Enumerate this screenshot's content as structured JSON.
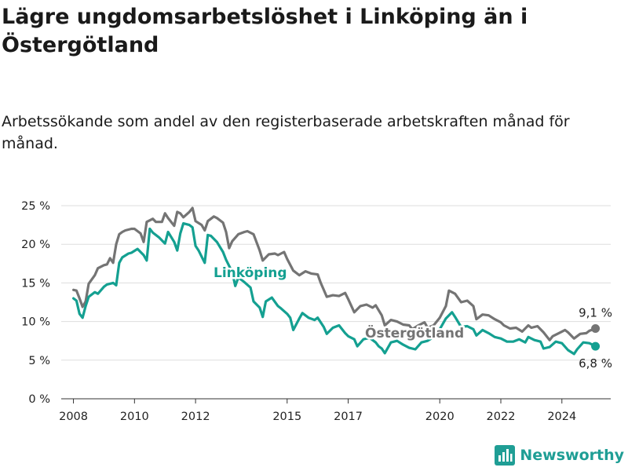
{
  "title": "Lägre ungdomsarbetslöshet i Linköping än i Östergötland",
  "subtitle": "Arbetssökande som andel av den registerbaserade arbetskraften månad för månad.",
  "brand": "Newsworthy",
  "colors": {
    "linkoping": "#14a091",
    "ostergotland": "#747474",
    "grid": "#dddddd",
    "brand": "#1f9e95"
  },
  "chart_data": {
    "type": "line",
    "x_unit": "year",
    "ylim": [
      0,
      25
    ],
    "xlim": [
      2007.6,
      2025.6
    ],
    "y_ticks": [
      {
        "value": 0,
        "label": "0 %"
      },
      {
        "value": 5,
        "label": "5 %"
      },
      {
        "value": 10,
        "label": "10 %"
      },
      {
        "value": 15,
        "label": "15 %"
      },
      {
        "value": 20,
        "label": "20 %"
      },
      {
        "value": 25,
        "label": "25 %"
      }
    ],
    "x_ticks": [
      {
        "value": 2008,
        "label": "2008"
      },
      {
        "value": 2010,
        "label": "2010"
      },
      {
        "value": 2012,
        "label": "2012"
      },
      {
        "value": 2015,
        "label": "2015"
      },
      {
        "value": 2017,
        "label": "2017"
      },
      {
        "value": 2020,
        "label": "2020"
      },
      {
        "value": 2022,
        "label": "2022"
      },
      {
        "value": 2024,
        "label": "2024"
      }
    ],
    "grid": true,
    "series": [
      {
        "name": "Östergötland",
        "end_label": "9,1 %",
        "points": [
          [
            2008.0,
            14.1
          ],
          [
            2008.1,
            14.0
          ],
          [
            2008.2,
            13.0
          ],
          [
            2008.3,
            11.9
          ],
          [
            2008.4,
            12.6
          ],
          [
            2008.5,
            14.9
          ],
          [
            2008.7,
            16.0
          ],
          [
            2008.8,
            16.9
          ],
          [
            2009.0,
            17.3
          ],
          [
            2009.1,
            17.4
          ],
          [
            2009.2,
            18.2
          ],
          [
            2009.3,
            17.6
          ],
          [
            2009.4,
            20.0
          ],
          [
            2009.5,
            21.3
          ],
          [
            2009.6,
            21.6
          ],
          [
            2009.7,
            21.8
          ],
          [
            2009.9,
            22.0
          ],
          [
            2010.0,
            22.0
          ],
          [
            2010.2,
            21.4
          ],
          [
            2010.3,
            20.3
          ],
          [
            2010.4,
            22.9
          ],
          [
            2010.6,
            23.3
          ],
          [
            2010.7,
            22.9
          ],
          [
            2010.9,
            22.9
          ],
          [
            2011.0,
            24.0
          ],
          [
            2011.1,
            23.4
          ],
          [
            2011.3,
            22.4
          ],
          [
            2011.4,
            24.2
          ],
          [
            2011.5,
            24.0
          ],
          [
            2011.6,
            23.5
          ],
          [
            2011.8,
            24.2
          ],
          [
            2011.9,
            24.7
          ],
          [
            2012.0,
            23.0
          ],
          [
            2012.2,
            22.5
          ],
          [
            2012.3,
            21.8
          ],
          [
            2012.4,
            23.0
          ],
          [
            2012.6,
            23.6
          ],
          [
            2012.7,
            23.4
          ],
          [
            2012.9,
            22.8
          ],
          [
            2013.0,
            21.6
          ],
          [
            2013.1,
            19.5
          ],
          [
            2013.2,
            20.4
          ],
          [
            2013.4,
            21.3
          ],
          [
            2013.6,
            21.6
          ],
          [
            2013.7,
            21.7
          ],
          [
            2013.9,
            21.3
          ],
          [
            2014.1,
            19.2
          ],
          [
            2014.2,
            17.9
          ],
          [
            2014.4,
            18.7
          ],
          [
            2014.6,
            18.8
          ],
          [
            2014.7,
            18.6
          ],
          [
            2014.9,
            19.0
          ],
          [
            2015.0,
            18.1
          ],
          [
            2015.2,
            16.6
          ],
          [
            2015.4,
            16.0
          ],
          [
            2015.6,
            16.5
          ],
          [
            2015.8,
            16.2
          ],
          [
            2016.0,
            16.1
          ],
          [
            2016.1,
            15.0
          ],
          [
            2016.3,
            13.2
          ],
          [
            2016.5,
            13.4
          ],
          [
            2016.7,
            13.3
          ],
          [
            2016.9,
            13.7
          ],
          [
            2017.0,
            12.9
          ],
          [
            2017.2,
            11.2
          ],
          [
            2017.4,
            12.0
          ],
          [
            2017.6,
            12.2
          ],
          [
            2017.8,
            11.8
          ],
          [
            2017.9,
            12.1
          ],
          [
            2018.1,
            10.8
          ],
          [
            2018.2,
            9.5
          ],
          [
            2018.4,
            10.2
          ],
          [
            2018.6,
            10.0
          ],
          [
            2018.8,
            9.6
          ],
          [
            2019.0,
            9.5
          ],
          [
            2019.1,
            9.0
          ],
          [
            2019.3,
            9.5
          ],
          [
            2019.5,
            9.9
          ],
          [
            2019.6,
            9.2
          ],
          [
            2019.8,
            9.5
          ],
          [
            2020.0,
            10.5
          ],
          [
            2020.2,
            12.0
          ],
          [
            2020.3,
            14.0
          ],
          [
            2020.5,
            13.6
          ],
          [
            2020.7,
            12.5
          ],
          [
            2020.9,
            12.7
          ],
          [
            2021.1,
            12.0
          ],
          [
            2021.2,
            10.3
          ],
          [
            2021.4,
            10.9
          ],
          [
            2021.6,
            10.8
          ],
          [
            2021.8,
            10.3
          ],
          [
            2022.0,
            9.9
          ],
          [
            2022.1,
            9.5
          ],
          [
            2022.3,
            9.1
          ],
          [
            2022.5,
            9.2
          ],
          [
            2022.7,
            8.7
          ],
          [
            2022.9,
            9.5
          ],
          [
            2023.0,
            9.2
          ],
          [
            2023.2,
            9.4
          ],
          [
            2023.4,
            8.6
          ],
          [
            2023.6,
            7.6
          ],
          [
            2023.7,
            8.1
          ],
          [
            2023.9,
            8.5
          ],
          [
            2024.1,
            8.9
          ],
          [
            2024.2,
            8.6
          ],
          [
            2024.4,
            7.8
          ],
          [
            2024.6,
            8.4
          ],
          [
            2024.8,
            8.5
          ],
          [
            2024.9,
            8.8
          ],
          [
            2025.1,
            9.1
          ]
        ]
      },
      {
        "name": "Linköping",
        "end_label": "6,8 %",
        "points": [
          [
            2008.0,
            13.0
          ],
          [
            2008.1,
            12.7
          ],
          [
            2008.2,
            11.0
          ],
          [
            2008.3,
            10.5
          ],
          [
            2008.4,
            12.0
          ],
          [
            2008.5,
            13.2
          ],
          [
            2008.7,
            13.8
          ],
          [
            2008.8,
            13.6
          ],
          [
            2009.0,
            14.5
          ],
          [
            2009.1,
            14.8
          ],
          [
            2009.3,
            15.0
          ],
          [
            2009.4,
            14.7
          ],
          [
            2009.5,
            17.6
          ],
          [
            2009.6,
            18.3
          ],
          [
            2009.8,
            18.8
          ],
          [
            2009.9,
            18.9
          ],
          [
            2010.1,
            19.4
          ],
          [
            2010.3,
            18.6
          ],
          [
            2010.4,
            17.9
          ],
          [
            2010.5,
            22.0
          ],
          [
            2010.6,
            21.5
          ],
          [
            2010.8,
            20.9
          ],
          [
            2011.0,
            20.1
          ],
          [
            2011.1,
            21.6
          ],
          [
            2011.3,
            20.3
          ],
          [
            2011.4,
            19.2
          ],
          [
            2011.5,
            21.4
          ],
          [
            2011.6,
            22.7
          ],
          [
            2011.8,
            22.5
          ],
          [
            2011.9,
            22.2
          ],
          [
            2012.0,
            19.8
          ],
          [
            2012.1,
            19.2
          ],
          [
            2012.3,
            17.6
          ],
          [
            2012.4,
            21.2
          ],
          [
            2012.5,
            21.1
          ],
          [
            2012.7,
            20.3
          ],
          [
            2012.9,
            19.0
          ],
          [
            2013.0,
            18.0
          ],
          [
            2013.2,
            16.4
          ],
          [
            2013.3,
            14.6
          ],
          [
            2013.4,
            15.7
          ],
          [
            2013.6,
            15.1
          ],
          [
            2013.8,
            14.4
          ],
          [
            2013.9,
            12.6
          ],
          [
            2014.1,
            11.8
          ],
          [
            2014.2,
            10.6
          ],
          [
            2014.3,
            12.6
          ],
          [
            2014.5,
            13.1
          ],
          [
            2014.7,
            12.0
          ],
          [
            2014.8,
            11.7
          ],
          [
            2015.0,
            11.0
          ],
          [
            2015.1,
            10.5
          ],
          [
            2015.2,
            8.9
          ],
          [
            2015.4,
            10.4
          ],
          [
            2015.5,
            11.1
          ],
          [
            2015.7,
            10.5
          ],
          [
            2015.9,
            10.2
          ],
          [
            2016.0,
            10.5
          ],
          [
            2016.2,
            9.3
          ],
          [
            2016.3,
            8.4
          ],
          [
            2016.5,
            9.2
          ],
          [
            2016.7,
            9.5
          ],
          [
            2016.9,
            8.5
          ],
          [
            2017.0,
            8.1
          ],
          [
            2017.2,
            7.7
          ],
          [
            2017.3,
            6.8
          ],
          [
            2017.5,
            7.7
          ],
          [
            2017.7,
            7.9
          ],
          [
            2017.9,
            7.3
          ],
          [
            2018.0,
            6.8
          ],
          [
            2018.1,
            6.5
          ],
          [
            2018.2,
            5.9
          ],
          [
            2018.4,
            7.3
          ],
          [
            2018.6,
            7.5
          ],
          [
            2018.8,
            7.0
          ],
          [
            2019.0,
            6.6
          ],
          [
            2019.2,
            6.4
          ],
          [
            2019.4,
            7.3
          ],
          [
            2019.6,
            7.5
          ],
          [
            2019.8,
            8.0
          ],
          [
            2020.0,
            9.0
          ],
          [
            2020.2,
            10.4
          ],
          [
            2020.4,
            11.2
          ],
          [
            2020.5,
            10.6
          ],
          [
            2020.7,
            9.3
          ],
          [
            2020.9,
            9.4
          ],
          [
            2021.1,
            9.0
          ],
          [
            2021.2,
            8.2
          ],
          [
            2021.4,
            8.9
          ],
          [
            2021.6,
            8.5
          ],
          [
            2021.8,
            8.0
          ],
          [
            2022.0,
            7.8
          ],
          [
            2022.2,
            7.4
          ],
          [
            2022.4,
            7.4
          ],
          [
            2022.6,
            7.7
          ],
          [
            2022.8,
            7.3
          ],
          [
            2022.9,
            8.0
          ],
          [
            2023.1,
            7.6
          ],
          [
            2023.3,
            7.4
          ],
          [
            2023.4,
            6.5
          ],
          [
            2023.6,
            6.7
          ],
          [
            2023.8,
            7.4
          ],
          [
            2024.0,
            7.2
          ],
          [
            2024.2,
            6.3
          ],
          [
            2024.4,
            5.8
          ],
          [
            2024.5,
            6.4
          ],
          [
            2024.7,
            7.3
          ],
          [
            2024.9,
            7.2
          ],
          [
            2025.1,
            6.8
          ]
        ]
      }
    ]
  }
}
